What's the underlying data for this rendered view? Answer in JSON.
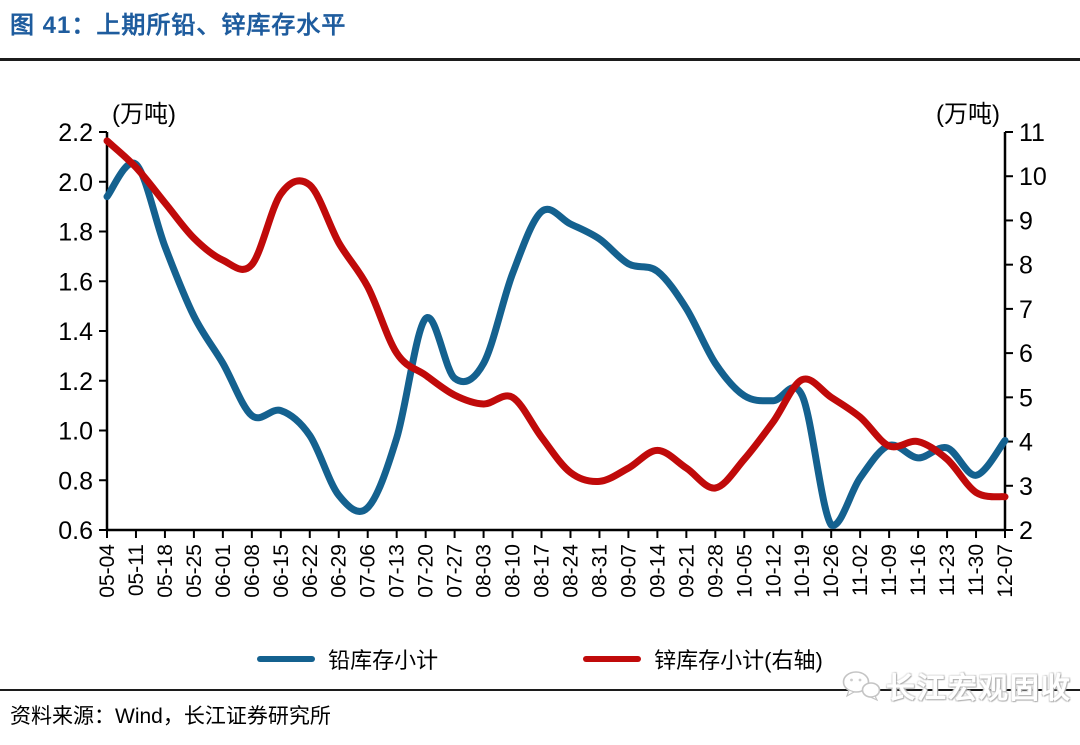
{
  "header": {
    "title": "图 41：上期所铅、锌库存水平"
  },
  "chart_data": {
    "type": "line",
    "title": "上期所铅、锌库存水平",
    "grid": false,
    "legend_position": "bottom",
    "categories": [
      "05-04",
      "05-11",
      "05-18",
      "05-25",
      "06-01",
      "06-08",
      "06-15",
      "06-22",
      "06-29",
      "07-06",
      "07-13",
      "07-20",
      "07-27",
      "08-03",
      "08-10",
      "08-17",
      "08-24",
      "08-31",
      "09-07",
      "09-14",
      "09-21",
      "09-28",
      "10-05",
      "10-12",
      "10-19",
      "10-26",
      "11-02",
      "11-09",
      "11-16",
      "11-23",
      "11-30",
      "12-07"
    ],
    "series": [
      {
        "name": "铅库存小计",
        "axis": "left",
        "color": "#14618F",
        "values": [
          1.94,
          2.07,
          1.74,
          1.46,
          1.27,
          1.06,
          1.08,
          0.98,
          0.74,
          0.69,
          0.97,
          1.45,
          1.21,
          1.27,
          1.63,
          1.88,
          1.83,
          1.77,
          1.67,
          1.64,
          1.49,
          1.27,
          1.14,
          1.12,
          1.14,
          0.62,
          0.81,
          0.94,
          0.89,
          0.93,
          0.82,
          0.96
        ]
      },
      {
        "name": "锌库存小计(右轴)",
        "axis": "right",
        "color": "#C00A0A",
        "values": [
          10.8,
          10.2,
          9.4,
          8.6,
          8.1,
          8.0,
          9.6,
          9.8,
          8.5,
          7.5,
          6.0,
          5.5,
          5.05,
          4.85,
          5.0,
          4.1,
          3.3,
          3.1,
          3.4,
          3.8,
          3.4,
          2.95,
          3.6,
          4.45,
          5.4,
          5.0,
          4.55,
          3.9,
          4.0,
          3.6,
          2.85,
          2.75
        ]
      }
    ],
    "left_axis": {
      "unit": "(万吨)",
      "min": 0.6,
      "max": 2.2,
      "ticks": [
        "2.2",
        "2.0",
        "1.8",
        "1.6",
        "1.4",
        "1.2",
        "1.0",
        "0.8",
        "0.6"
      ]
    },
    "right_axis": {
      "unit": "(万吨)",
      "min": 2,
      "max": 11,
      "ticks": [
        "11",
        "10",
        "9",
        "8",
        "7",
        "6",
        "5",
        "4",
        "3",
        "2"
      ]
    }
  },
  "legend": {
    "items": [
      {
        "label": "铅库存小计",
        "color": "#14618F"
      },
      {
        "label": "锌库存小计(右轴)",
        "color": "#C00A0A"
      }
    ]
  },
  "footer": {
    "source": "资料来源：Wind，长江证券研究所",
    "watermark": "长江宏观固收"
  }
}
